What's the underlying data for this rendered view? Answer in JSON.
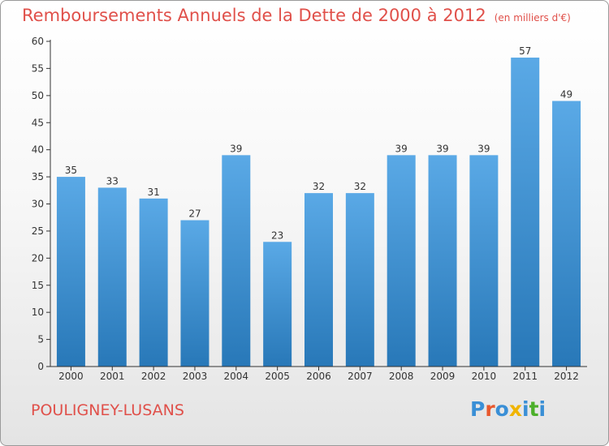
{
  "chart_data": {
    "type": "bar",
    "title": "Remboursements Annuels de la Dette de 2000 à 2012",
    "unit_note": "(en milliers d'€)",
    "categories": [
      "2000",
      "2001",
      "2002",
      "2003",
      "2004",
      "2005",
      "2006",
      "2007",
      "2008",
      "2009",
      "2010",
      "2011",
      "2012"
    ],
    "values": [
      35,
      33,
      31,
      27,
      39,
      23,
      32,
      32,
      39,
      39,
      39,
      57,
      49
    ],
    "ylim": [
      0,
      60
    ],
    "yticks": [
      0,
      5,
      10,
      15,
      20,
      25,
      30,
      35,
      40,
      45,
      50,
      55,
      60
    ],
    "xlabel": "",
    "ylabel": "",
    "grid": false,
    "bar_color_top": "#5aa9e6",
    "bar_color_bottom": "#2878b8"
  },
  "footer": {
    "town": "POULIGNEY-LUSANS",
    "logo_letters": [
      "P",
      "r",
      "o",
      "x",
      "i",
      "t",
      "i"
    ],
    "logo_colors": [
      "#3a8fd6",
      "#e8582d",
      "#3a8fd6",
      "#f0b400",
      "#3a8fd6",
      "#4caf2a",
      "#3a8fd6"
    ]
  },
  "colors": {
    "title": "#e0504a",
    "axis": "#333333",
    "label": "#333333"
  }
}
